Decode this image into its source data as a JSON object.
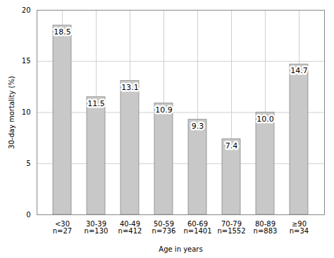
{
  "chart_data": {
    "type": "bar",
    "categories": [
      "<30\nn=27",
      "30-39\nn=130",
      "40-49\nn=412",
      "50-59\nn=736",
      "60-69\nn=1401",
      "70-79\nn=1552",
      "80-89\nn=883",
      "≥90\nn=34"
    ],
    "values": [
      18.5,
      11.5,
      13.1,
      10.9,
      9.3,
      7.4,
      10.0,
      14.7
    ],
    "value_labels": [
      "18.5",
      "11.5",
      "13.1",
      "10.9",
      "9.3",
      "7.4",
      "10.0",
      "14.7"
    ],
    "data_labels": true,
    "color": "#c8c8c8",
    "xlabel": "Age in years",
    "ylabel": "30-day mortality (%)",
    "ylim": [
      0,
      20
    ],
    "yticks": [
      0,
      5,
      10,
      15,
      20
    ],
    "grid": true
  }
}
